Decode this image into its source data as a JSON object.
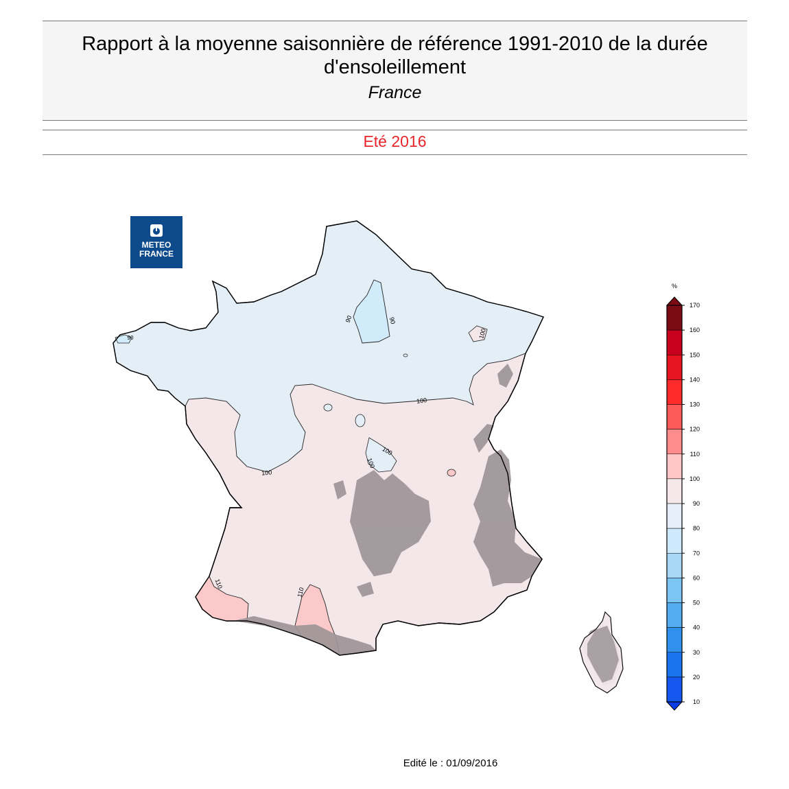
{
  "header": {
    "title": "Rapport à la moyenne saisonnière de référence 1991-2010 de la durée d'ensoleillement",
    "region": "France",
    "season": "Eté 2016"
  },
  "logo": {
    "line1": "METEO",
    "line2": "FRANCE",
    "icon": "meteo-france-logo-icon"
  },
  "legend": {
    "unit": "%",
    "ticks": [
      170,
      160,
      150,
      140,
      130,
      120,
      110,
      100,
      90,
      80,
      70,
      60,
      50,
      40,
      30,
      20,
      10
    ],
    "colors": [
      "#7a0a14",
      "#c8001e",
      "#e6141e",
      "#ff2a2a",
      "#ff5a5a",
      "#ff8c8c",
      "#ffc8c8",
      "#f6e8ea",
      "#e6eef8",
      "#cde9fb",
      "#a8d8f5",
      "#7cc4f2",
      "#52acee",
      "#3090ee",
      "#1a74f0",
      "#1458f0",
      "#0a3ce8"
    ]
  },
  "contours": {
    "label_90": "90",
    "label_100": "100",
    "label_110": "110"
  },
  "footer": {
    "edit_label": "Edité le : 01/09/2016"
  }
}
